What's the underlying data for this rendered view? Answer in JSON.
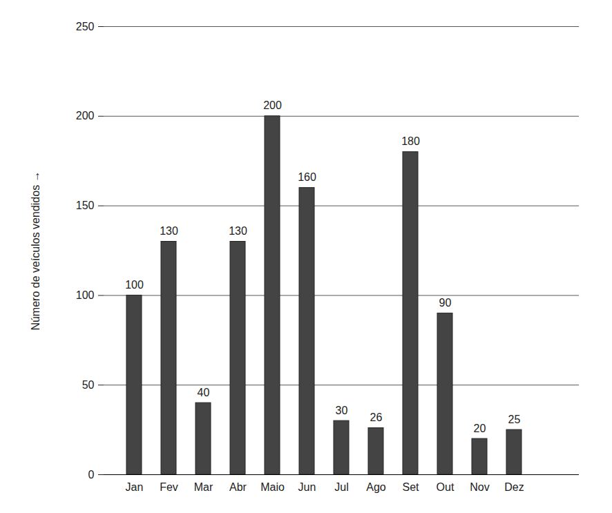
{
  "chart_data": {
    "type": "bar",
    "ylabel": "Número de veículos vendidos",
    "categories": [
      "Jan",
      "Fev",
      "Mar",
      "Abr",
      "Maio",
      "Jun",
      "Jul",
      "Ago",
      "Set",
      "Out",
      "Nov",
      "Dez",
      null
    ],
    "values": [
      100,
      130,
      40,
      130,
      200,
      160,
      30,
      26,
      180,
      90,
      20,
      25,
      null
    ],
    "color": "#444444",
    "ylim": [
      0,
      250
    ],
    "yticks": [
      0,
      50,
      100,
      150,
      200,
      250
    ],
    "grid": true,
    "data_labels": true
  }
}
